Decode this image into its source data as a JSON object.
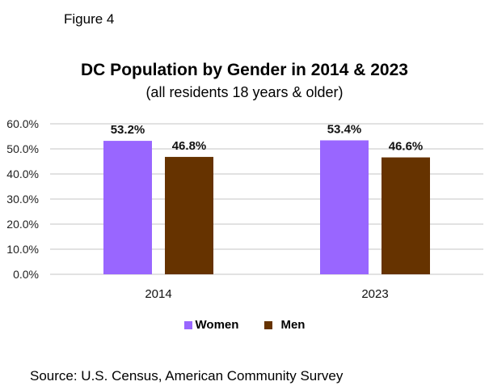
{
  "figure_label": "Figure 4",
  "source": "Source: U.S. Census, American Community Survey",
  "chart_data": {
    "type": "bar",
    "title": "DC Population by Gender in 2014 & 2023",
    "subtitle": "(all residents 18 years & older)",
    "categories": [
      "2014",
      "2023"
    ],
    "series": [
      {
        "name": "Women",
        "color": "#9966ff",
        "values": [
          53.2,
          53.4
        ],
        "labels": [
          "53.2%",
          "53.4%"
        ]
      },
      {
        "name": "Men",
        "color": "#663300",
        "values": [
          46.8,
          46.6
        ],
        "labels": [
          "46.8%",
          "46.6%"
        ]
      }
    ],
    "xlabel": "",
    "ylabel": "",
    "ylim": [
      0,
      60
    ],
    "yticks": [
      "0.0%",
      "10.0%",
      "20.0%",
      "30.0%",
      "40.0%",
      "50.0%",
      "60.0%"
    ],
    "grid": true,
    "legend": "bottom"
  }
}
